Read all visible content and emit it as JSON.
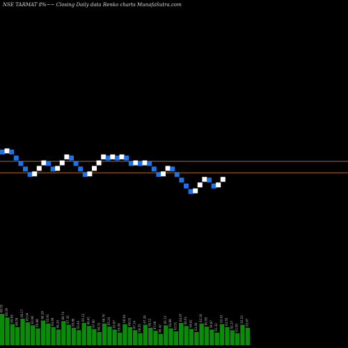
{
  "chart_data": {
    "type": "renko",
    "title": "NSE TARMAT 8%~~ Closing Daily data  Renko  charts MunafaSutra.com",
    "colors": {
      "background": "#000000",
      "up_brick": "#ffffff",
      "down_brick": "#1e73e8",
      "reference_line": "#b5651d",
      "volume_bars": "#0a8c0a"
    },
    "reference_lines": [
      67.0,
      64.5
    ],
    "bricks": [
      {
        "dir": "down",
        "close": 68.5
      },
      {
        "dir": "up",
        "close": 69.8
      },
      {
        "dir": "down",
        "close": 68.5
      },
      {
        "dir": "down",
        "close": 67.2
      },
      {
        "dir": "down",
        "close": 66.0
      },
      {
        "dir": "down",
        "close": 64.8
      },
      {
        "dir": "down",
        "close": 63.6
      },
      {
        "dir": "up",
        "close": 64.8
      },
      {
        "dir": "up",
        "close": 66.0
      },
      {
        "dir": "up",
        "close": 67.2
      },
      {
        "dir": "down",
        "close": 66.0
      },
      {
        "dir": "down",
        "close": 64.8
      },
      {
        "dir": "up",
        "close": 66.0
      },
      {
        "dir": "up",
        "close": 67.2
      },
      {
        "dir": "up",
        "close": 68.5
      },
      {
        "dir": "down",
        "close": 67.2
      },
      {
        "dir": "down",
        "close": 66.0
      },
      {
        "dir": "down",
        "close": 64.8
      },
      {
        "dir": "down",
        "close": 63.6
      },
      {
        "dir": "up",
        "close": 64.8
      },
      {
        "dir": "up",
        "close": 66.0
      },
      {
        "dir": "up",
        "close": 67.2
      },
      {
        "dir": "up",
        "close": 68.5
      },
      {
        "dir": "down",
        "close": 67.2
      },
      {
        "dir": "up",
        "close": 68.5
      },
      {
        "dir": "down",
        "close": 67.2
      },
      {
        "dir": "up",
        "close": 68.5
      },
      {
        "dir": "down",
        "close": 67.2
      },
      {
        "dir": "down",
        "close": 66.0
      },
      {
        "dir": "up",
        "close": 67.2
      },
      {
        "dir": "down",
        "close": 66.0
      },
      {
        "dir": "up",
        "close": 67.2
      },
      {
        "dir": "down",
        "close": 66.0
      },
      {
        "dir": "down",
        "close": 64.8
      },
      {
        "dir": "down",
        "close": 63.6
      },
      {
        "dir": "up",
        "close": 64.8
      },
      {
        "dir": "up",
        "close": 66.0
      },
      {
        "dir": "down",
        "close": 64.8
      },
      {
        "dir": "down",
        "close": 63.6
      },
      {
        "dir": "down",
        "close": 62.4
      },
      {
        "dir": "down",
        "close": 61.1
      },
      {
        "dir": "down",
        "close": 59.9
      },
      {
        "dir": "up",
        "close": 61.1
      },
      {
        "dir": "up",
        "close": 62.4
      },
      {
        "dir": "up",
        "close": 63.6
      },
      {
        "dir": "down",
        "close": 62.4
      },
      {
        "dir": "down",
        "close": 61.1
      },
      {
        "dir": "up",
        "close": 62.4
      },
      {
        "dir": "up",
        "close": 63.6
      }
    ],
    "volume": [
      {
        "label": "69.53",
        "value": 52
      },
      {
        "label": "68.39",
        "value": 46
      },
      {
        "label": "69.69",
        "value": 35
      },
      {
        "label": "68.09",
        "value": 30
      },
      {
        "label": "66.17",
        "value": 44
      },
      {
        "label": "65.04",
        "value": 38
      },
      {
        "label": "63.96",
        "value": 33
      },
      {
        "label": "65.88",
        "value": 28
      },
      {
        "label": "66.28",
        "value": 41
      },
      {
        "label": "63.91",
        "value": 36
      },
      {
        "label": "64.99",
        "value": 30
      },
      {
        "label": "66.24",
        "value": 26
      },
      {
        "label": "68.74",
        "value": 40
      },
      {
        "label": "67.35",
        "value": 34
      },
      {
        "label": "65.86",
        "value": 29
      },
      {
        "label": "63.93",
        "value": 25
      },
      {
        "label": "65.12",
        "value": 37
      },
      {
        "label": "66.41",
        "value": 32
      },
      {
        "label": "67.90",
        "value": 27
      },
      {
        "label": "68.31",
        "value": 22
      },
      {
        "label": "66.76",
        "value": 36
      },
      {
        "label": "65.24",
        "value": 31
      },
      {
        "label": "63.87",
        "value": 26
      },
      {
        "label": "65.06",
        "value": 21
      },
      {
        "label": "66.94",
        "value": 35
      },
      {
        "label": "68.02",
        "value": 30
      },
      {
        "label": "67.14",
        "value": 25
      },
      {
        "label": "68.55",
        "value": 20
      },
      {
        "label": "67.39",
        "value": 34
      },
      {
        "label": "66.12",
        "value": 29
      },
      {
        "label": "67.08",
        "value": 24
      },
      {
        "label": "66.42",
        "value": 19
      },
      {
        "label": "65.13",
        "value": 33
      },
      {
        "label": "64.88",
        "value": 28
      },
      {
        "label": "63.51",
        "value": 23
      },
      {
        "label": "64.97",
        "value": 37
      },
      {
        "label": "66.01",
        "value": 32
      },
      {
        "label": "64.62",
        "value": 27
      },
      {
        "label": "63.40",
        "value": 22
      },
      {
        "label": "62.18",
        "value": 36
      },
      {
        "label": "60.95",
        "value": 31
      },
      {
        "label": "59.87",
        "value": 26
      },
      {
        "label": "61.32",
        "value": 21
      },
      {
        "label": "62.41",
        "value": 35
      },
      {
        "label": "63.55",
        "value": 30
      },
      {
        "label": "62.27",
        "value": 25
      },
      {
        "label": "61.09",
        "value": 20
      },
      {
        "label": "62.53",
        "value": 34
      },
      {
        "label": "63.67",
        "value": 29
      }
    ]
  }
}
